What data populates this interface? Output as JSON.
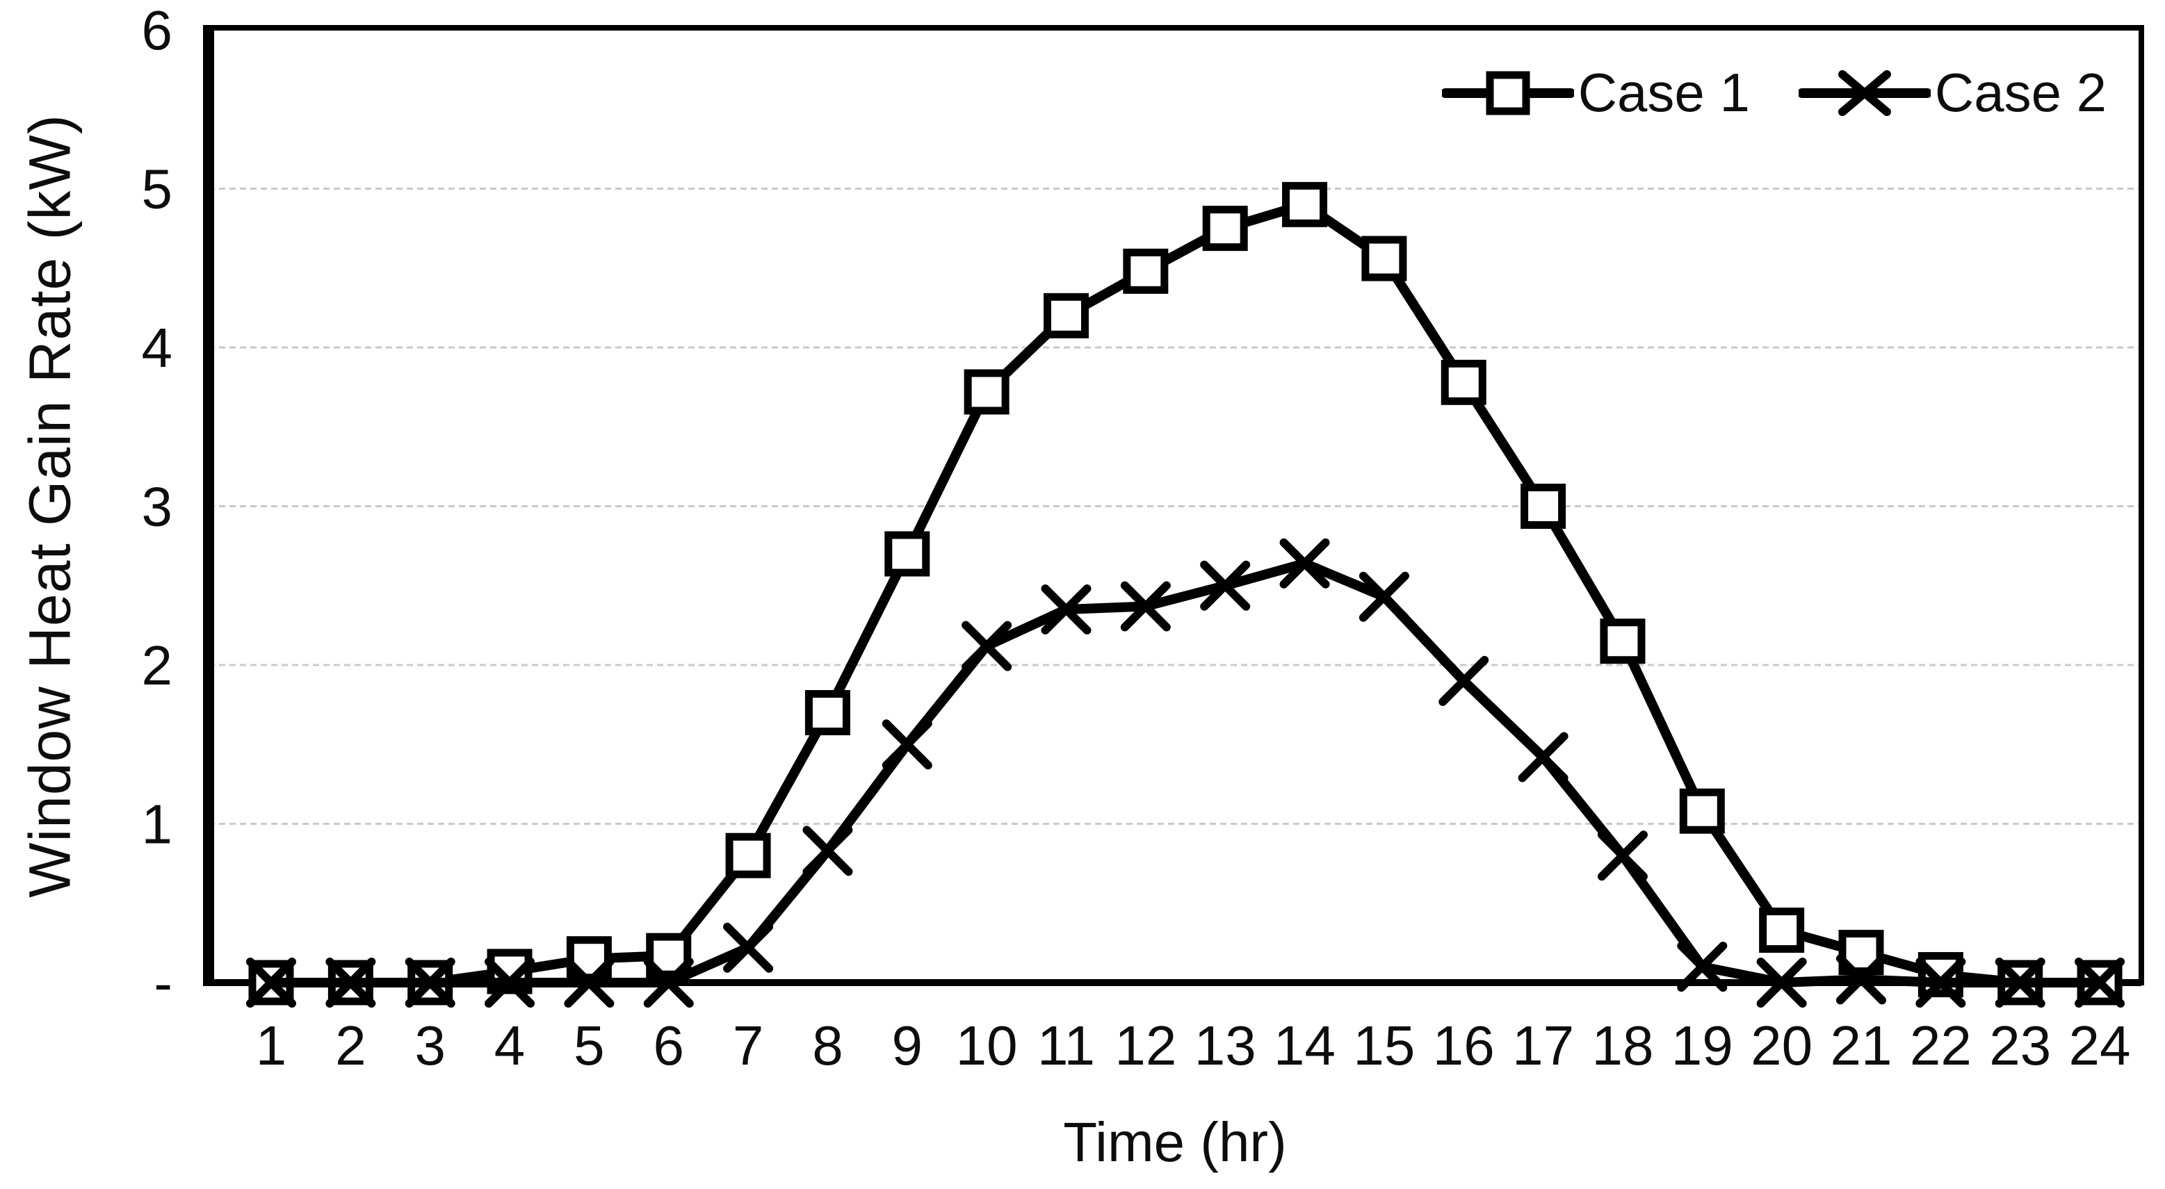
{
  "figure": {
    "background": "#ffffff",
    "axis_color": "#000000",
    "grid_color": "#c9c9c9",
    "series_color": "#000000"
  },
  "chart_data": {
    "type": "line",
    "x": [
      1,
      2,
      3,
      4,
      5,
      6,
      7,
      8,
      9,
      10,
      11,
      12,
      13,
      14,
      15,
      16,
      17,
      18,
      19,
      20,
      21,
      22,
      23,
      24
    ],
    "series": [
      {
        "name": "Case 1",
        "marker": "square",
        "color": "#000000",
        "values": [
          0,
          0,
          0,
          0.07,
          0.15,
          0.17,
          0.8,
          1.7,
          2.7,
          3.72,
          4.2,
          4.48,
          4.75,
          4.9,
          4.56,
          3.78,
          3.0,
          2.15,
          1.08,
          0.33,
          0.19,
          0.05,
          0,
          0
        ]
      },
      {
        "name": "Case 2",
        "marker": "x",
        "color": "#000000",
        "values": [
          0,
          0,
          0,
          0,
          0,
          0,
          0.22,
          0.83,
          1.5,
          2.12,
          2.35,
          2.37,
          2.5,
          2.64,
          2.43,
          1.9,
          1.42,
          0.8,
          0.1,
          0,
          0.02,
          0,
          0,
          0
        ]
      }
    ],
    "xlabel": "Time (hr)",
    "ylabel": "Window Heat Gain Rate (kW)",
    "ylim": [
      0,
      6
    ],
    "yticks": [
      {
        "value": 0,
        "label": "-"
      },
      {
        "value": 1,
        "label": "1"
      },
      {
        "value": 2,
        "label": "2"
      },
      {
        "value": 3,
        "label": "3"
      },
      {
        "value": 4,
        "label": "4"
      },
      {
        "value": 5,
        "label": "5"
      },
      {
        "value": 6,
        "label": "6"
      }
    ],
    "grid": "horizontal",
    "legend_position": "top-right-inside"
  }
}
